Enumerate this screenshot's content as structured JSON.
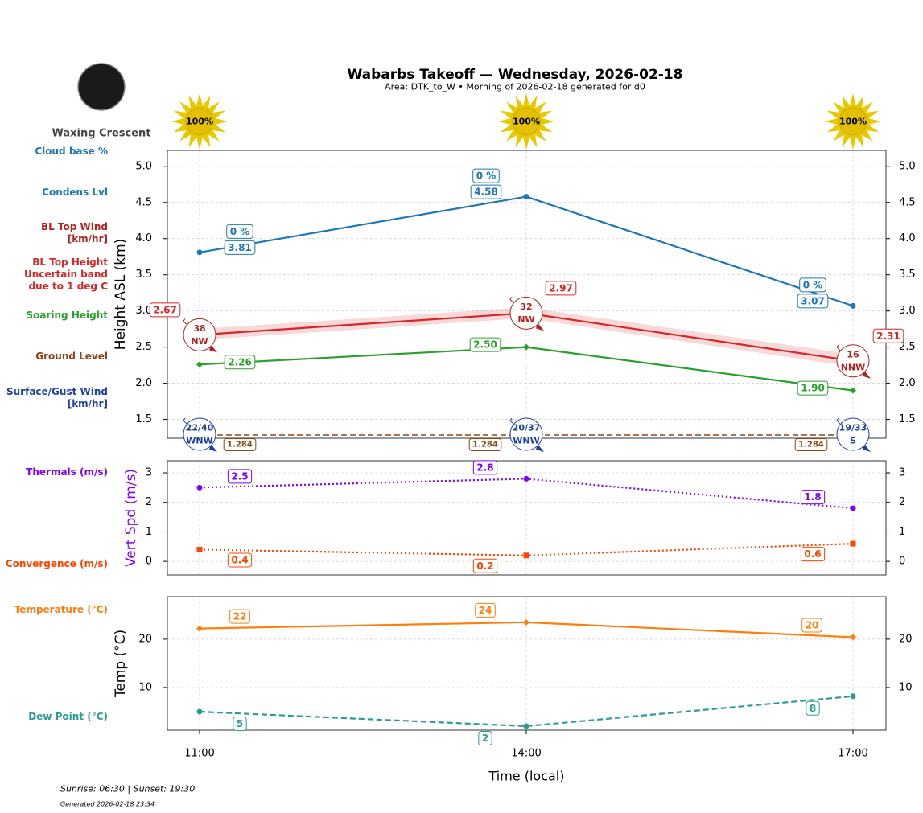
{
  "title": "Wabarbs Takeoff — Wednesday, 2026-02-18",
  "subtitle": "Area: DTK_to_W • Morning of 2026-02-18 generated for d0",
  "moon_phase": "Waxing Crescent",
  "sun_times": "Sunrise: 06:30 | Sunset: 19:30",
  "generated": "Generated 2026-02-18 23:34",
  "chart_data": [
    {
      "type": "line",
      "ylabel": "Height ASL (km)",
      "ylim": [
        1.24,
        5.22
      ],
      "yticks": [
        1.5,
        {
          "value": 2,
          "label": "2.0"
        },
        2.5,
        {
          "value": 3,
          "label": "3.0"
        },
        3.5,
        {
          "value": 4,
          "label": "4.0"
        },
        4.5,
        {
          "value": 5,
          "label": "5.0"
        }
      ],
      "grid": true,
      "sun_values": [
        100,
        100,
        100
      ],
      "sun_labels": [
        "100%",
        "100%",
        "100%"
      ],
      "series": [
        {
          "name": "Cloud base %",
          "color": "#1f77b4",
          "style": "label",
          "values": [
            0,
            0,
            0
          ],
          "value_labels": [
            "0 %",
            "0 %",
            "0 %"
          ]
        },
        {
          "name": "Condens Lvl",
          "color": "#1f77b4",
          "style": "solid",
          "marker": "circle",
          "values": [
            3.81,
            4.58,
            3.07
          ]
        },
        {
          "name": "BL Top Wind [km/hr]",
          "color": "#b22222",
          "style": "wind",
          "values": [
            38,
            32,
            16
          ],
          "directions": [
            "NW",
            "NW",
            "NNW"
          ]
        },
        {
          "name": "BL Top Height Uncertain band due to 1 deg C",
          "color": "#d62728",
          "style": "band",
          "values": [
            2.67,
            2.97,
            2.31
          ],
          "band_low": [
            2.6,
            2.9,
            2.23
          ],
          "band_high": [
            2.75,
            3.05,
            2.4
          ]
        },
        {
          "name": "Soaring Height",
          "color": "#2ca02c",
          "style": "solid",
          "marker": "diamond",
          "values": [
            2.26,
            2.5,
            1.9
          ],
          "value_labels": [
            "2.26",
            "2.50",
            "1.90"
          ]
        },
        {
          "name": "Ground Level",
          "color": "#8b4513",
          "style": "dashed",
          "values": [
            1.284,
            1.284,
            1.284
          ]
        },
        {
          "name": "Surface/Gust Wind [km/hr]",
          "color": "#1f3fa8",
          "style": "wind",
          "values": [
            22,
            20,
            19
          ],
          "gusts": [
            40,
            37,
            33
          ],
          "value_labels": [
            "22/40",
            "20/37",
            "19/33"
          ],
          "directions": [
            "WNW",
            "WNW",
            "S"
          ]
        }
      ]
    },
    {
      "type": "line",
      "ylabel": "Vert Spd (m/s)",
      "ylabel_color": "#7f00ff",
      "ylim": [
        -0.46,
        3.41
      ],
      "yticks": [
        0,
        1,
        2,
        3
      ],
      "grid": true,
      "series": [
        {
          "name": "Thermals (m/s)",
          "color": "#7f00ff",
          "style": "dotted",
          "marker": "circle",
          "values": [
            2.5,
            2.8,
            1.8
          ]
        },
        {
          "name": "Convergence (m/s)",
          "color": "#ff4500",
          "style": "dotted",
          "marker": "square",
          "values": [
            0.4,
            0.2,
            0.6
          ]
        }
      ]
    },
    {
      "type": "line",
      "ylabel": "Temp (°C)",
      "ylim": [
        1.17,
        28.8
      ],
      "yticks": [
        10,
        20
      ],
      "grid": true,
      "categories": [
        "11:00",
        "14:00",
        "17:00"
      ],
      "xlabel": "Time (local)",
      "series": [
        {
          "name": "Temperature (°C)",
          "color": "#ff7f0e",
          "style": "solid",
          "marker": "diamond",
          "values": [
            22.2,
            23.5,
            20.4
          ],
          "value_labels": [
            "22",
            "24",
            "20"
          ]
        },
        {
          "name": "Dew Point (°C)",
          "color": "#2a9d8f",
          "style": "dashed",
          "marker": "circle",
          "values": [
            5,
            2,
            8.2
          ],
          "value_labels": [
            "5",
            "2",
            "8"
          ]
        }
      ]
    }
  ]
}
